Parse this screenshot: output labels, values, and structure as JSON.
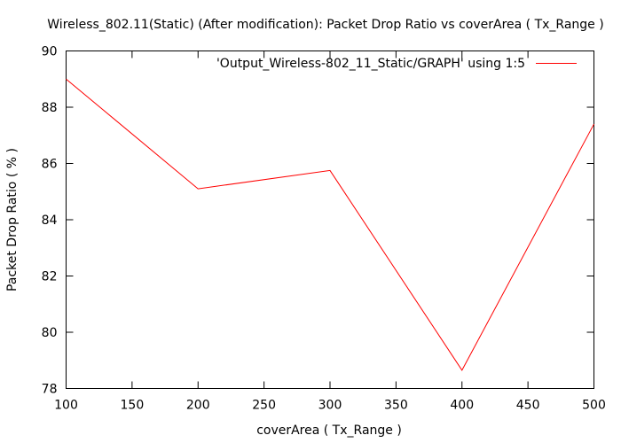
{
  "chart_data": {
    "type": "line",
    "title": "Wireless_802.11(Static) (After modification): Packet Drop Ratio vs coverArea ( Tx_Range )",
    "xlabel": "coverArea ( Tx_Range )",
    "ylabel": "Packet Drop Ratio ( % )",
    "xlim": [
      100,
      500
    ],
    "ylim": [
      78,
      90
    ],
    "xticks": [
      100,
      150,
      200,
      250,
      300,
      350,
      400,
      450,
      500
    ],
    "yticks": [
      78,
      80,
      82,
      84,
      86,
      88,
      90
    ],
    "grid": false,
    "legend_position": "top-right",
    "series": [
      {
        "name": "'Output_Wireless-802_11_Static/GRAPH' using 1:5",
        "color": "#ff0000",
        "x": [
          100,
          200,
          300,
          400,
          500
        ],
        "y": [
          89.0,
          85.1,
          85.75,
          78.65,
          87.4
        ]
      }
    ]
  }
}
